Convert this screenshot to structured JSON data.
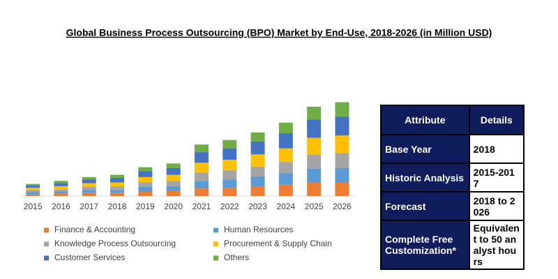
{
  "chart_data": {
    "type": "bar",
    "stacked": true,
    "title": "Global Business Process Outsourcing (BPO) Market by End-Use, 2018-2026 (in Million USD)",
    "categories": [
      "2015",
      "2016",
      "2017",
      "2018",
      "2019",
      "2020",
      "2021",
      "2022",
      "2023",
      "2024",
      "2025",
      "2026"
    ],
    "ylim": [
      0,
      130
    ],
    "series": [
      {
        "name": "Finance & Accounting",
        "color": "#ed7d31",
        "values": [
          2,
          3,
          4,
          4,
          6,
          7,
          10,
          11,
          13,
          15,
          18,
          18
        ]
      },
      {
        "name": "Human Resources",
        "color": "#5b9bd5",
        "values": [
          3,
          3,
          4,
          4,
          6,
          6,
          10,
          11,
          13,
          15,
          18,
          19
        ]
      },
      {
        "name": "Knowledge Process Outsourcing",
        "color": "#a5a5a5",
        "values": [
          3,
          3,
          4,
          5,
          6,
          7,
          11,
          12,
          13,
          15,
          19,
          20
        ]
      },
      {
        "name": "Procurement & Supply Chain",
        "color": "#ffc000",
        "values": [
          3,
          4,
          5,
          5,
          7,
          8,
          13,
          14,
          16,
          18,
          22,
          23
        ]
      },
      {
        "name": "Customer Services",
        "color": "#4472c4",
        "values": [
          3,
          4,
          5,
          6,
          8,
          9,
          14,
          15,
          17,
          20,
          24,
          25
        ]
      },
      {
        "name": "Others",
        "color": "#70ad47",
        "values": [
          2,
          3,
          3,
          4,
          5,
          6,
          10,
          11,
          12,
          14,
          17,
          19
        ]
      }
    ]
  },
  "table": {
    "header": [
      "Attribute",
      "Details"
    ],
    "rows": [
      [
        "Base Year",
        "2018"
      ],
      [
        "Historic Analysis",
        "2015-2017"
      ],
      [
        "Forecast",
        "2018 to 2026"
      ],
      [
        "Complete Free Customization*",
        "Equivalent to 50 analyst hours"
      ]
    ]
  }
}
